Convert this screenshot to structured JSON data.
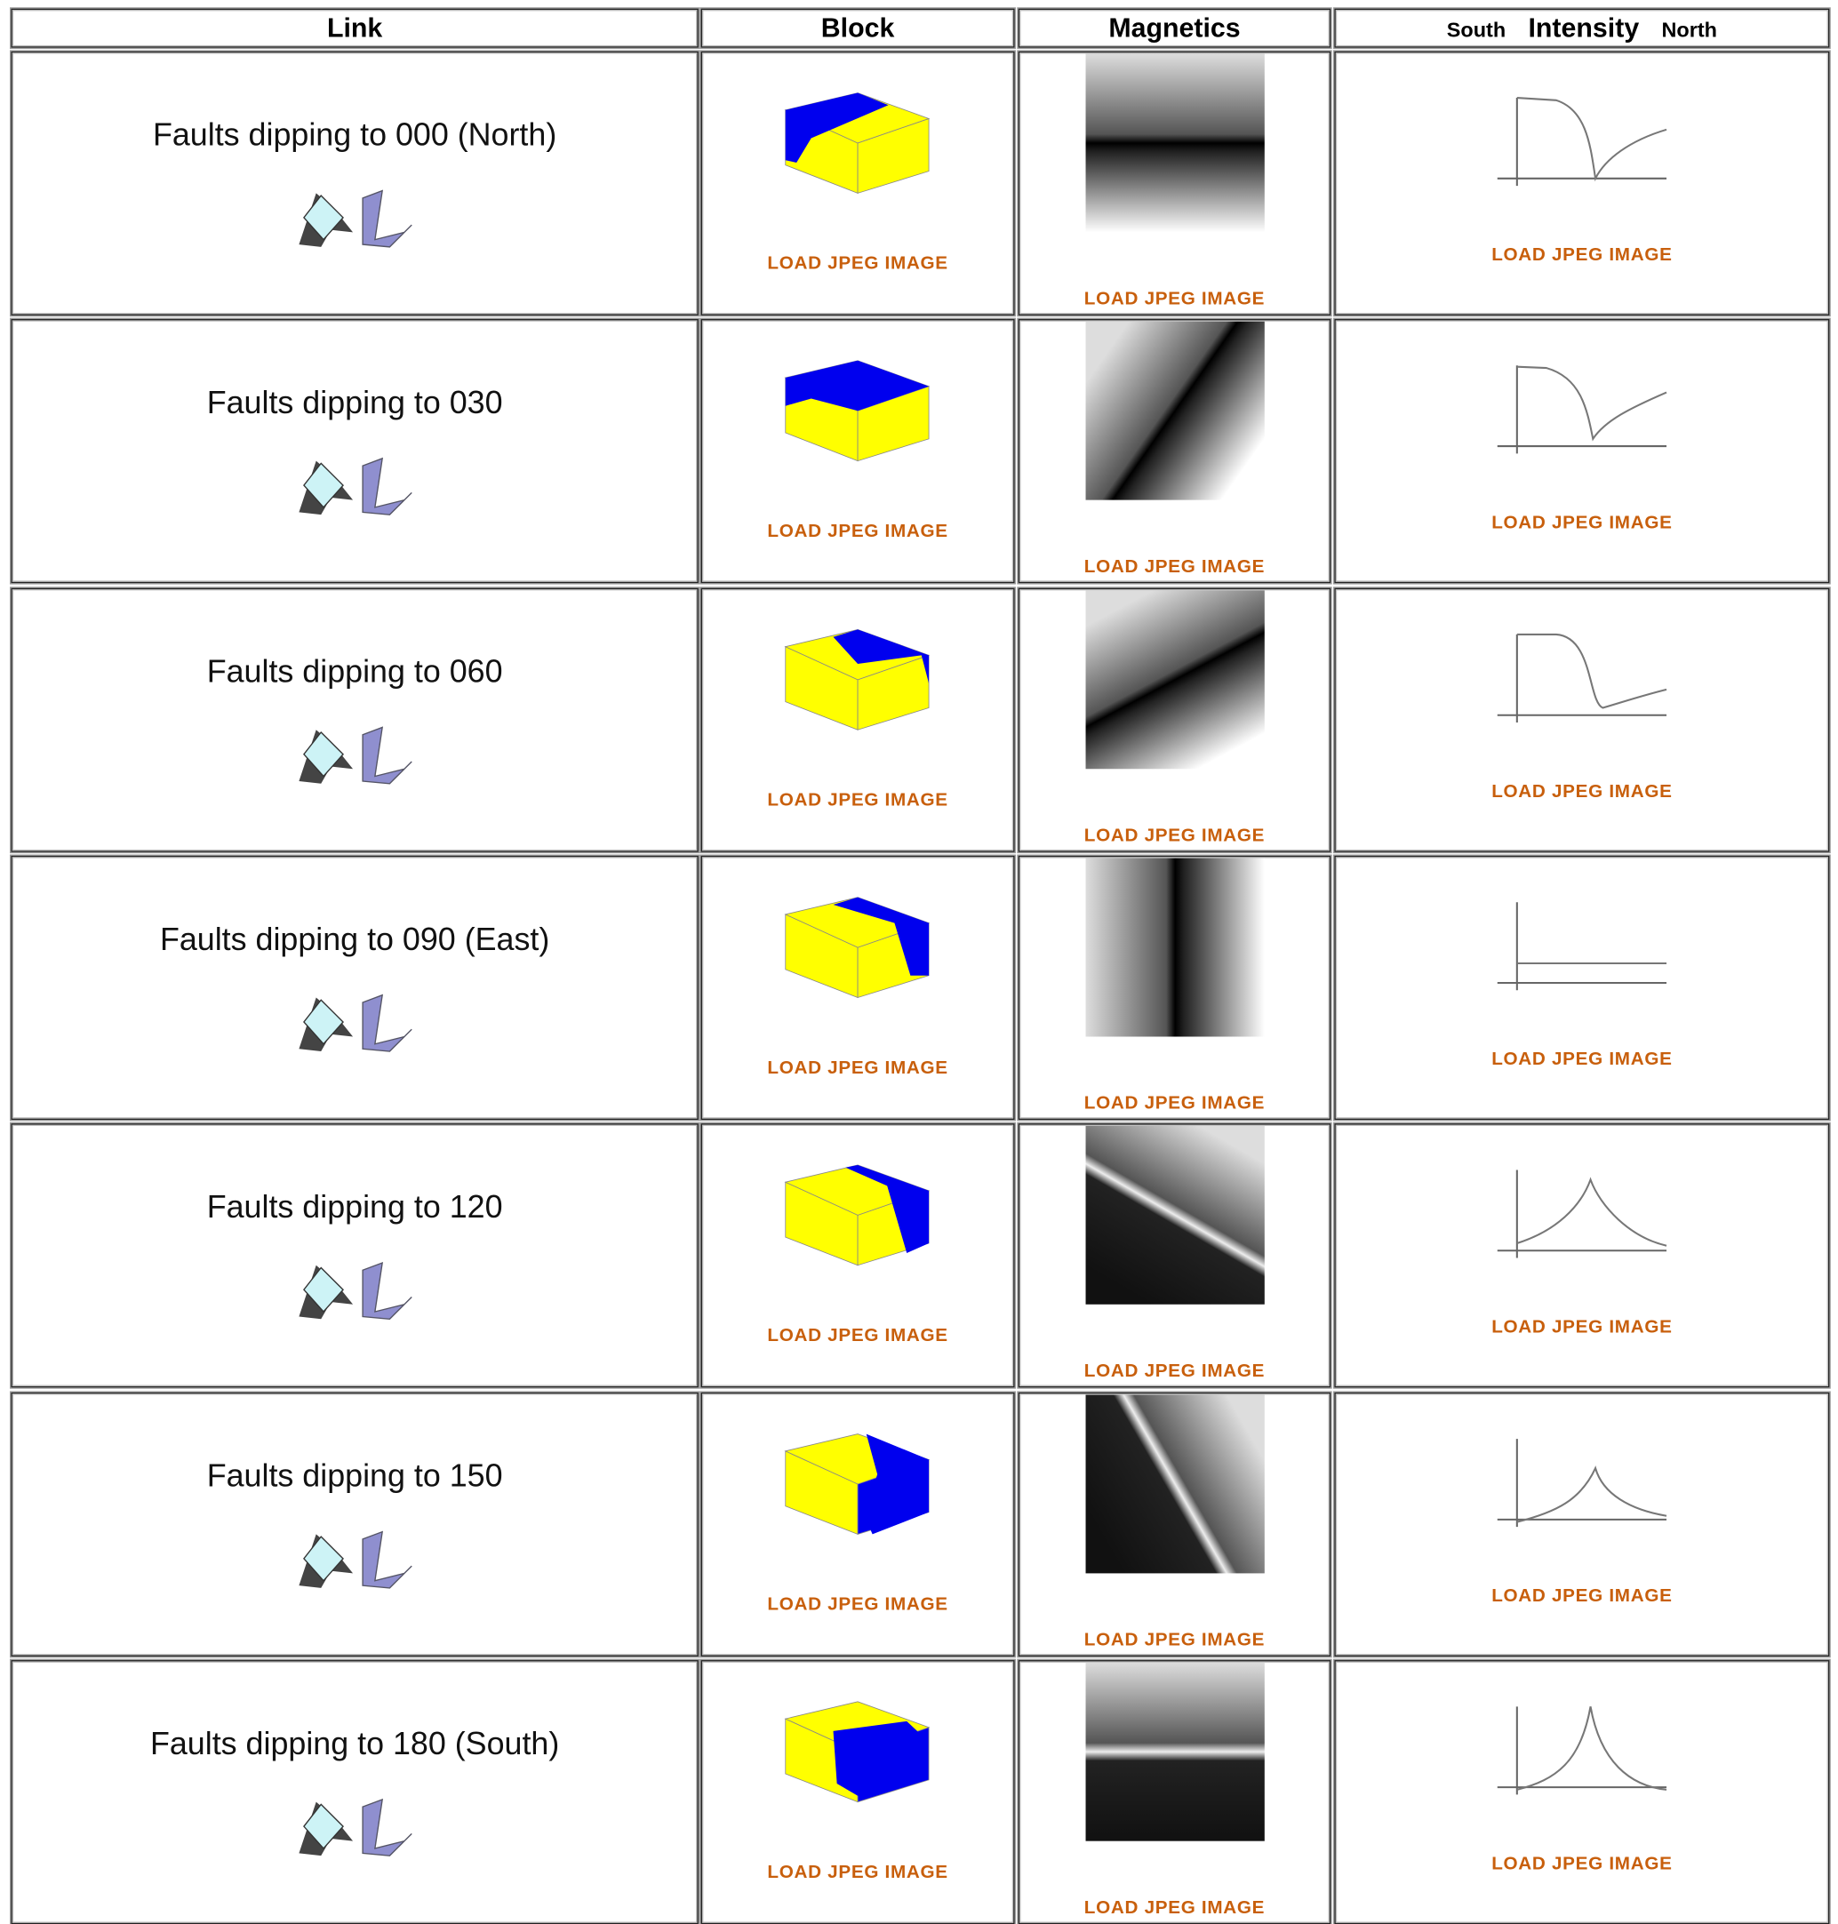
{
  "table": {
    "header": {
      "link": "Link",
      "block": "Block",
      "magnetics": "Magnetics",
      "intensity_left": "South",
      "intensity": "Intensity",
      "intensity_right": "North"
    },
    "rows": [
      {
        "link": "Faults dipping to 000 (North)",
        "block_link": "LOAD JPEG IMAGE",
        "magnetics_link": "LOAD JPEG IMAGE",
        "intensity_link": "LOAD JPEG IMAGE"
      },
      {
        "link": "Faults dipping to 030",
        "block_link": "LOAD JPEG IMAGE",
        "magnetics_link": "LOAD JPEG IMAGE",
        "intensity_link": "LOAD JPEG IMAGE"
      },
      {
        "link": "Faults dipping to 060",
        "block_link": "LOAD JPEG IMAGE",
        "magnetics_link": "LOAD JPEG IMAGE",
        "intensity_link": "LOAD JPEG IMAGE"
      },
      {
        "link": "Faults dipping to 090 (East)",
        "block_link": "LOAD JPEG IMAGE",
        "magnetics_link": "LOAD JPEG IMAGE",
        "intensity_link": "LOAD JPEG IMAGE"
      },
      {
        "link": "Faults dipping to 120",
        "block_link": "LOAD JPEG IMAGE",
        "magnetics_link": "LOAD JPEG IMAGE",
        "intensity_link": "LOAD JPEG IMAGE"
      },
      {
        "link": "Faults dipping to 150",
        "block_link": "LOAD JPEG IMAGE",
        "magnetics_link": "LOAD JPEG IMAGE",
        "intensity_link": "LOAD JPEG IMAGE"
      },
      {
        "link": "Faults dipping to 180 (South)",
        "block_link": "LOAD JPEG IMAGE",
        "magnetics_link": "LOAD JPEG IMAGE",
        "intensity_link": "LOAD JPEG IMAGE"
      }
    ]
  }
}
